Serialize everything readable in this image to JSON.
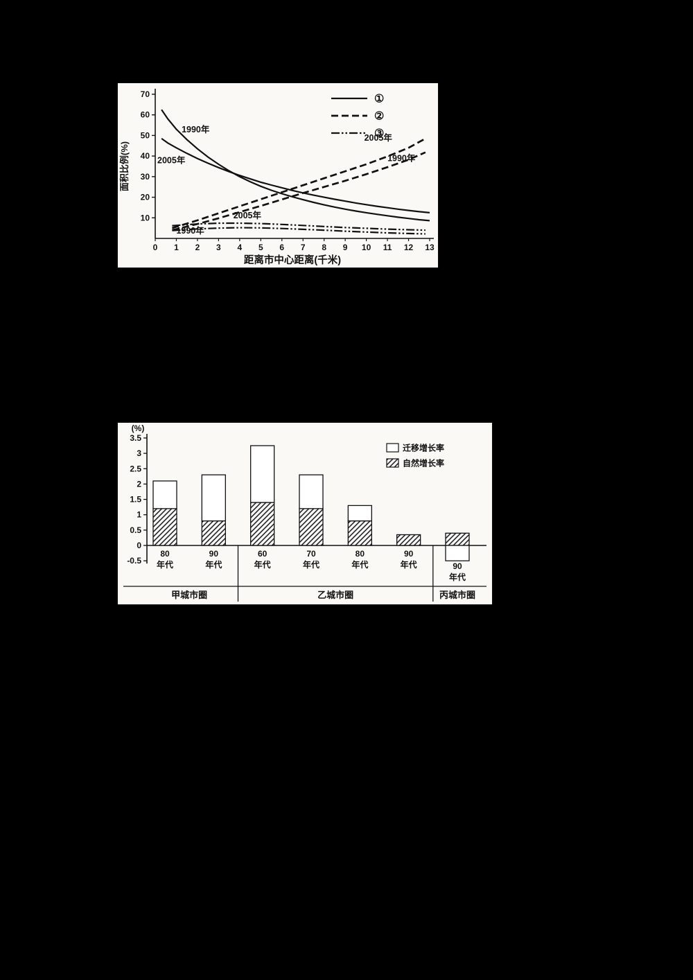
{
  "page": {
    "background_color": "#000000",
    "panel_color": "#faf9f6",
    "ink_color": "#111111"
  },
  "chart_data": [
    {
      "type": "line",
      "title": "",
      "xlabel": "距离市中心距离(千米)",
      "ylabel": "面积比例(%)",
      "xlim": [
        0,
        13
      ],
      "ylim": [
        0,
        70
      ],
      "xticks": [
        0,
        1,
        2,
        3,
        4,
        5,
        6,
        7,
        8,
        9,
        10,
        11,
        12,
        13
      ],
      "yticks": [
        10,
        20,
        30,
        40,
        50,
        60,
        70
      ],
      "grid": false,
      "line_color": "#111111",
      "legend": {
        "position": "top-right",
        "entries": [
          {
            "label": "①",
            "style": "solid"
          },
          {
            "label": "②",
            "style": "dashed"
          },
          {
            "label": "③",
            "style": "dashdotdot"
          }
        ]
      },
      "series": [
        {
          "name": "line1-1990",
          "style": "solid",
          "year": "1990年",
          "points": [
            [
              0.3,
              62.5
            ],
            [
              0.6,
              58
            ],
            [
              1,
              53
            ],
            [
              1.5,
              48
            ],
            [
              2,
              43.5
            ],
            [
              2.5,
              39.5
            ],
            [
              3,
              36
            ],
            [
              3.5,
              32.8
            ],
            [
              4,
              30
            ],
            [
              4.5,
              27.5
            ],
            [
              5,
              25.3
            ],
            [
              5.5,
              23.4
            ],
            [
              6,
              21.7
            ],
            [
              6.5,
              20.2
            ],
            [
              7,
              18.8
            ],
            [
              7.5,
              17.5
            ],
            [
              8,
              16.3
            ],
            [
              8.5,
              15.2
            ],
            [
              9,
              14.2
            ],
            [
              9.5,
              13.3
            ],
            [
              10,
              12.5
            ],
            [
              10.5,
              11.7
            ],
            [
              11,
              11
            ],
            [
              11.5,
              10.3
            ],
            [
              12,
              9.7
            ],
            [
              12.5,
              9.1
            ],
            [
              13,
              8.6
            ]
          ]
        },
        {
          "name": "line1-2005",
          "style": "solid",
          "year": "2005年",
          "points": [
            [
              0.3,
              48.5
            ],
            [
              0.6,
              46.3
            ],
            [
              1,
              44
            ],
            [
              1.5,
              41.3
            ],
            [
              2,
              38.8
            ],
            [
              2.5,
              36.5
            ],
            [
              3,
              34.4
            ],
            [
              3.5,
              32.4
            ],
            [
              4,
              30.6
            ],
            [
              4.5,
              28.9
            ],
            [
              5,
              27.3
            ],
            [
              5.5,
              25.9
            ],
            [
              6,
              24.6
            ],
            [
              6.5,
              23.3
            ],
            [
              7,
              22.1
            ],
            [
              7.5,
              21
            ],
            [
              8,
              20
            ],
            [
              8.5,
              19
            ],
            [
              9,
              18.1
            ],
            [
              9.5,
              17.2
            ],
            [
              10,
              16.4
            ],
            [
              10.5,
              15.6
            ],
            [
              11,
              14.9
            ],
            [
              11.5,
              14.2
            ],
            [
              12,
              13.6
            ],
            [
              12.5,
              13
            ],
            [
              13,
              12.5
            ]
          ]
        },
        {
          "name": "line2-2005",
          "style": "dashed",
          "year": "2005年",
          "points": [
            [
              0.8,
              5
            ],
            [
              2,
              8.8
            ],
            [
              3,
              12.2
            ],
            [
              4,
              15.6
            ],
            [
              5,
              19
            ],
            [
              6,
              22.4
            ],
            [
              7,
              25.8
            ],
            [
              8,
              29.2
            ],
            [
              9,
              32.6
            ],
            [
              10,
              36
            ],
            [
              11,
              39.8
            ],
            [
              12,
              44
            ],
            [
              12.8,
              48.5
            ]
          ]
        },
        {
          "name": "line2-1990",
          "style": "dashed",
          "year": "1990年",
          "points": [
            [
              0.8,
              4
            ],
            [
              2,
              7
            ],
            [
              3,
              9.8
            ],
            [
              4,
              12.8
            ],
            [
              5,
              15.8
            ],
            [
              6,
              18.9
            ],
            [
              7,
              22
            ],
            [
              8,
              25
            ],
            [
              9,
              28
            ],
            [
              10,
              31.2
            ],
            [
              11,
              34.6
            ],
            [
              12,
              38.2
            ],
            [
              12.8,
              41.8
            ]
          ]
        },
        {
          "name": "line3-2005",
          "style": "dashdotdot",
          "year": "2005年",
          "points": [
            [
              0.8,
              6.2
            ],
            [
              2,
              7
            ],
            [
              3,
              7.4
            ],
            [
              4,
              7.4
            ],
            [
              5,
              7.2
            ],
            [
              6,
              6.8
            ],
            [
              7,
              6.3
            ],
            [
              8,
              5.8
            ],
            [
              9,
              5.3
            ],
            [
              10,
              4.9
            ],
            [
              11,
              4.5
            ],
            [
              12,
              4.2
            ],
            [
              12.8,
              4
            ]
          ]
        },
        {
          "name": "line3-1990",
          "style": "dashdotdot",
          "year": "1990年",
          "points": [
            [
              0.8,
              3.8
            ],
            [
              2,
              4.6
            ],
            [
              3,
              5
            ],
            [
              4,
              5.2
            ],
            [
              5,
              5.1
            ],
            [
              6,
              4.8
            ],
            [
              7,
              4.4
            ],
            [
              8,
              4
            ],
            [
              9,
              3.5
            ],
            [
              10,
              3.1
            ],
            [
              11,
              2.7
            ],
            [
              12,
              2.4
            ],
            [
              12.8,
              2.2
            ]
          ]
        }
      ],
      "annotations": [
        {
          "text": "1990年",
          "x": 1.25,
          "y": 51.5
        },
        {
          "text": "2005年",
          "x": 0.1,
          "y": 36.5
        },
        {
          "text": "2005年",
          "x": 9.9,
          "y": 47.5
        },
        {
          "text": "1990年",
          "x": 11.0,
          "y": 37.5
        },
        {
          "text": "2005年",
          "x": 3.7,
          "y": 9.8
        },
        {
          "text": "1990年",
          "x": 1.0,
          "y": 2.4
        }
      ]
    },
    {
      "type": "bar",
      "stacked": true,
      "title": "",
      "ylabel": "(%)",
      "ylim": [
        -0.5,
        3.5
      ],
      "yticks": [
        -0.5,
        0,
        0.5,
        1,
        1.5,
        2,
        2.5,
        3,
        3.5
      ],
      "grid": false,
      "legend": {
        "position": "top-right",
        "entries": [
          {
            "label": "迁移增长率",
            "fill": "white"
          },
          {
            "label": "自然增长率",
            "fill": "hatch"
          }
        ]
      },
      "categories": [
        {
          "top": "80",
          "bottom": "年代"
        },
        {
          "top": "90",
          "bottom": "年代"
        },
        {
          "top": "60",
          "bottom": "年代"
        },
        {
          "top": "70",
          "bottom": "年代"
        },
        {
          "top": "80",
          "bottom": "年代"
        },
        {
          "top": "90",
          "bottom": "年代"
        },
        {
          "top": "90",
          "bottom": "年代"
        }
      ],
      "groups": [
        {
          "label": "甲城市圈",
          "span": 2
        },
        {
          "label": "乙城市圈",
          "span": 4
        },
        {
          "label": "丙城市圈",
          "span": 1
        }
      ],
      "series": [
        {
          "name": "自然增长率",
          "fill": "hatch",
          "values": [
            1.2,
            0.8,
            1.4,
            1.2,
            0.8,
            0.35,
            0.4
          ]
        },
        {
          "name": "迁移增长率",
          "fill": "white",
          "values": [
            0.9,
            1.5,
            1.85,
            1.1,
            0.5,
            0,
            -0.5
          ]
        }
      ]
    }
  ]
}
